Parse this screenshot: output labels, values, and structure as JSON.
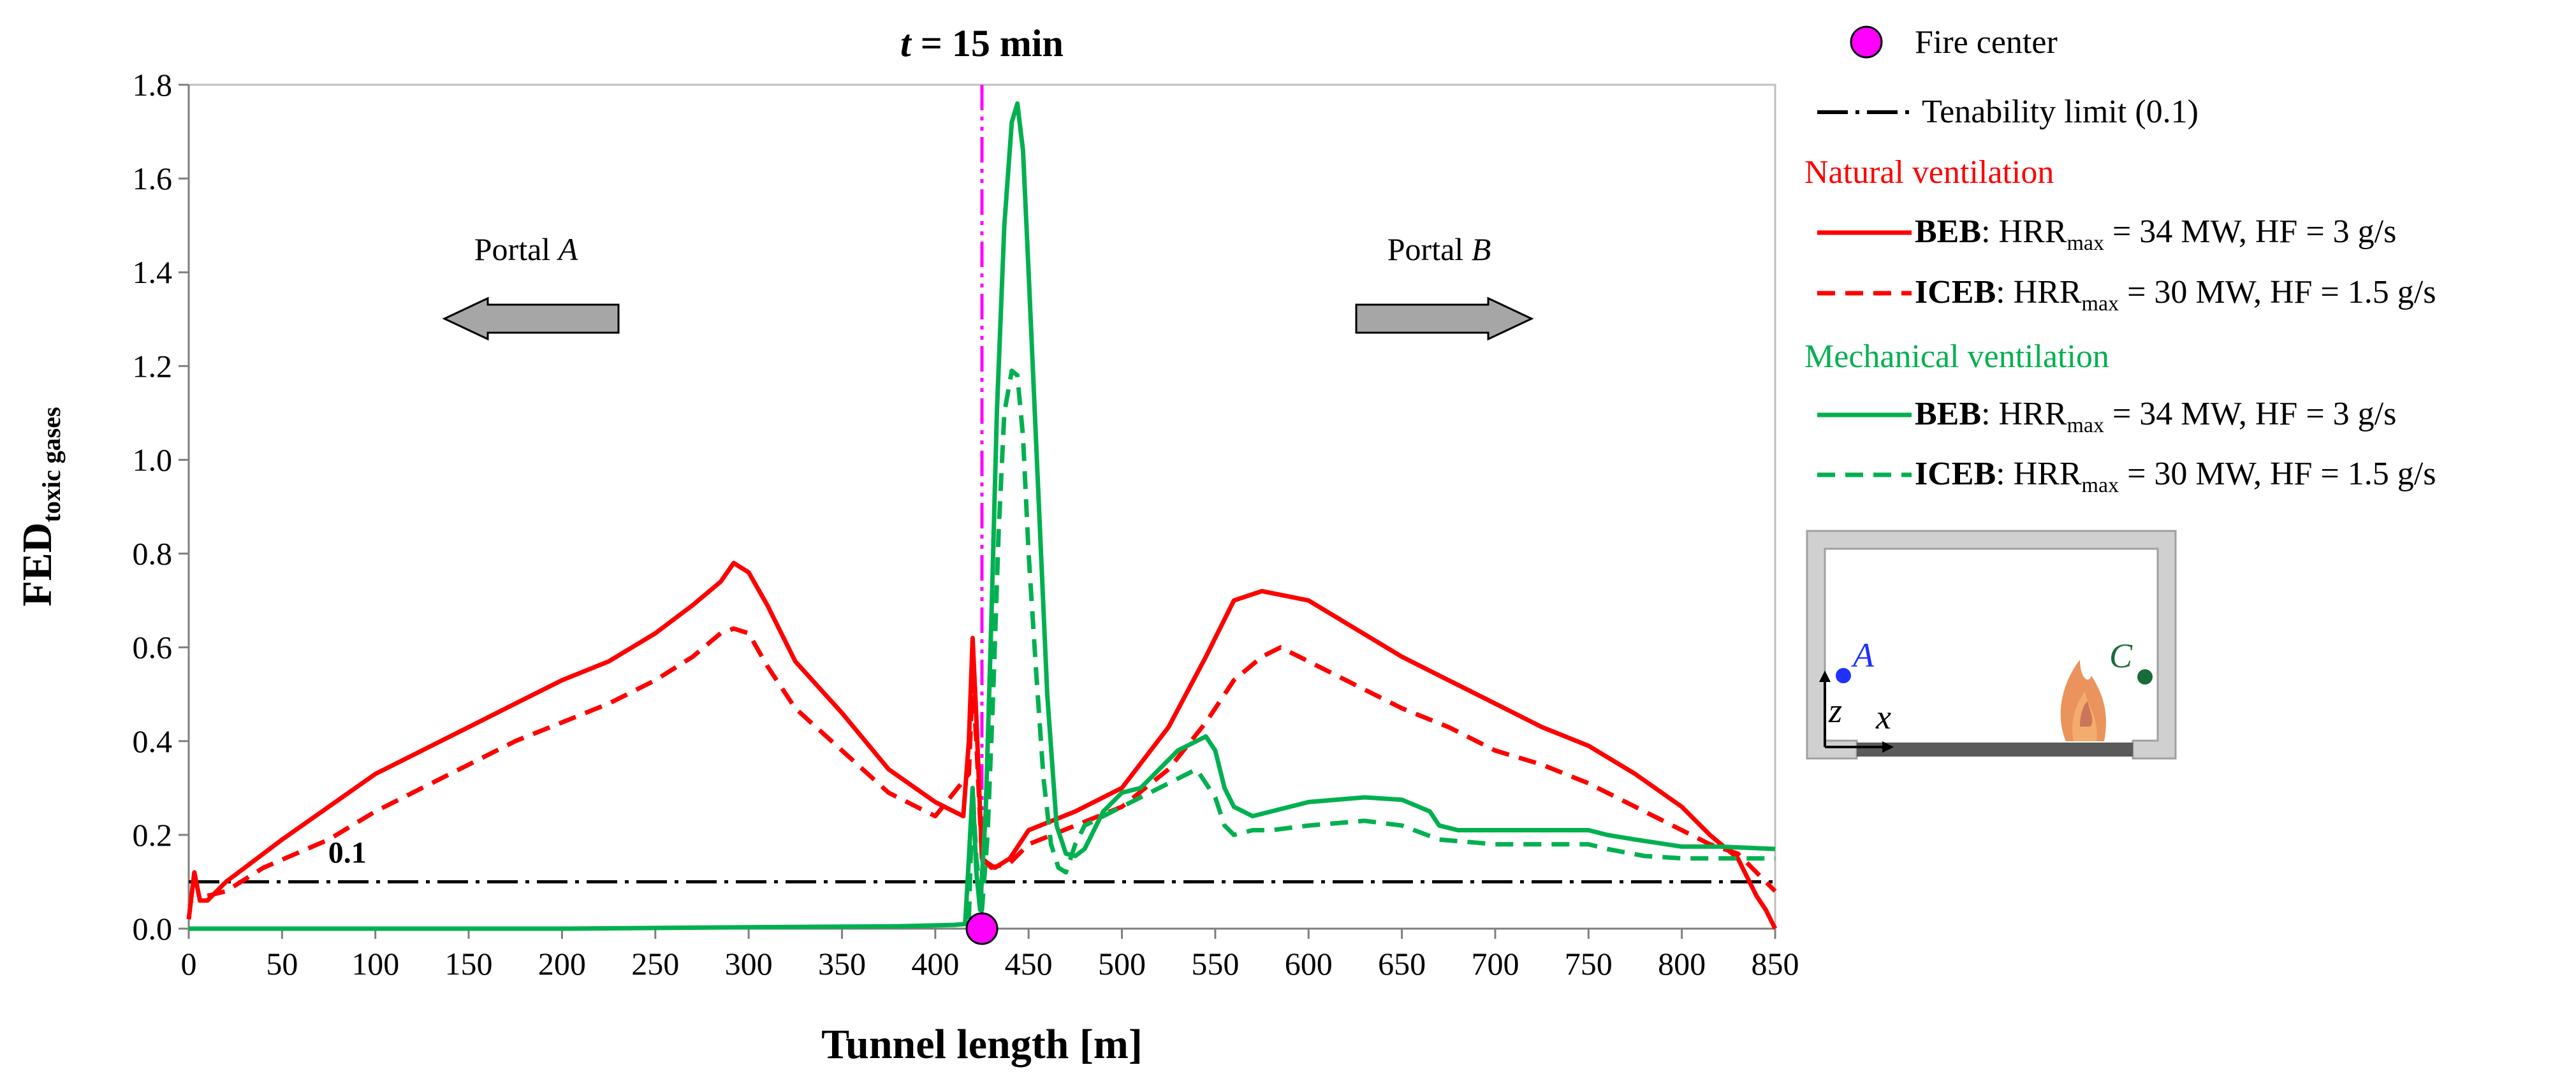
{
  "chart_data": {
    "type": "line",
    "title_prefix": "t",
    "title_rest": " = 15 min",
    "xlabel": "Tunnel length [m]",
    "ylabel_main": "FED",
    "ylabel_sub": "toxic gases",
    "xlim": [
      0,
      850
    ],
    "ylim": [
      0,
      1.8
    ],
    "xticks": [
      0,
      50,
      100,
      150,
      200,
      250,
      300,
      350,
      400,
      450,
      500,
      550,
      600,
      650,
      700,
      750,
      800,
      850
    ],
    "yticks": [
      "0.0",
      "0.2",
      "0.4",
      "0.6",
      "0.8",
      "1.0",
      "1.2",
      "1.4",
      "1.6",
      "1.8"
    ],
    "grid": false,
    "tenability_limit": 0.1,
    "tenability_label": "0.1",
    "fire_center_x": 425,
    "annotations": {
      "portal_a": {
        "word": "Portal ",
        "letter": "A"
      },
      "portal_b": {
        "word": "Portal ",
        "letter": "B"
      }
    },
    "colors": {
      "natural": "#ff0000",
      "mechanical": "#00b050",
      "fire": "#ff00ff",
      "limit": "#000000",
      "arrow_fill": "#a6a6a6"
    },
    "series": [
      {
        "group": "natural",
        "style": "solid",
        "x": [
          0,
          3,
          6,
          10,
          15,
          20,
          30,
          50,
          75,
          100,
          125,
          150,
          175,
          200,
          225,
          250,
          270,
          285,
          292,
          300,
          310,
          325,
          350,
          375,
          400,
          415,
          418,
          420,
          422,
          425,
          428,
          432,
          440,
          450,
          475,
          500,
          525,
          545,
          560,
          575,
          600,
          625,
          650,
          675,
          700,
          725,
          750,
          775,
          800,
          815,
          830,
          840,
          845,
          850
        ],
        "y": [
          0.02,
          0.12,
          0.06,
          0.06,
          0.08,
          0.1,
          0.13,
          0.19,
          0.26,
          0.33,
          0.38,
          0.43,
          0.48,
          0.53,
          0.57,
          0.63,
          0.69,
          0.74,
          0.78,
          0.76,
          0.69,
          0.57,
          0.46,
          0.34,
          0.27,
          0.24,
          0.4,
          0.62,
          0.45,
          0.15,
          0.14,
          0.13,
          0.15,
          0.21,
          0.25,
          0.3,
          0.43,
          0.58,
          0.7,
          0.72,
          0.7,
          0.64,
          0.58,
          0.53,
          0.48,
          0.43,
          0.39,
          0.33,
          0.26,
          0.2,
          0.15,
          0.07,
          0.04,
          0.0
        ]
      },
      {
        "group": "natural",
        "style": "dashed",
        "x": [
          10,
          20,
          40,
          75,
          100,
          125,
          150,
          175,
          200,
          225,
          250,
          270,
          285,
          292,
          300,
          310,
          325,
          350,
          375,
          400,
          418,
          420,
          422,
          425,
          430,
          440,
          450,
          475,
          500,
          525,
          545,
          560,
          575,
          585,
          600,
          625,
          650,
          675,
          700,
          725,
          750,
          775,
          800,
          815,
          830,
          840,
          850
        ],
        "y": [
          0.07,
          0.08,
          0.13,
          0.19,
          0.25,
          0.3,
          0.35,
          0.4,
          0.44,
          0.48,
          0.53,
          0.58,
          0.63,
          0.64,
          0.63,
          0.56,
          0.47,
          0.38,
          0.29,
          0.24,
          0.33,
          0.53,
          0.4,
          0.15,
          0.13,
          0.14,
          0.18,
          0.22,
          0.26,
          0.34,
          0.44,
          0.53,
          0.58,
          0.6,
          0.57,
          0.52,
          0.47,
          0.43,
          0.38,
          0.35,
          0.31,
          0.26,
          0.21,
          0.18,
          0.16,
          0.12,
          0.08
        ]
      },
      {
        "group": "mechanical",
        "style": "solid",
        "x": [
          0,
          100,
          200,
          300,
          380,
          410,
          416,
          418,
          420,
          422,
          424,
          427,
          430,
          433,
          437,
          441,
          444,
          447,
          450,
          455,
          460,
          465,
          470,
          475,
          480,
          490,
          500,
          510,
          520,
          530,
          540,
          545,
          550,
          555,
          560,
          570,
          580,
          600,
          630,
          650,
          665,
          670,
          680,
          700,
          750,
          760,
          775,
          800,
          820,
          850
        ],
        "y": [
          0.0,
          0.0,
          0.0,
          0.003,
          0.005,
          0.008,
          0.01,
          0.15,
          0.3,
          0.12,
          0.04,
          0.25,
          0.65,
          1.1,
          1.5,
          1.72,
          1.76,
          1.66,
          1.4,
          0.95,
          0.5,
          0.22,
          0.16,
          0.155,
          0.17,
          0.25,
          0.29,
          0.3,
          0.34,
          0.38,
          0.4,
          0.41,
          0.38,
          0.3,
          0.26,
          0.24,
          0.25,
          0.27,
          0.28,
          0.275,
          0.25,
          0.22,
          0.21,
          0.21,
          0.21,
          0.2,
          0.19,
          0.175,
          0.175,
          0.17
        ]
      },
      {
        "group": "mechanical",
        "style": "dashed",
        "x": [
          418,
          420,
          422,
          425,
          428,
          431,
          434,
          437,
          441,
          444,
          447,
          450,
          454,
          458,
          462,
          466,
          470,
          475,
          480,
          490,
          500,
          520,
          540,
          550,
          555,
          560,
          570,
          580,
          600,
          630,
          650,
          670,
          700,
          750,
          760,
          780,
          800,
          820,
          850
        ],
        "y": [
          0.02,
          0.3,
          0.15,
          0.04,
          0.2,
          0.5,
          0.85,
          1.1,
          1.19,
          1.18,
          1.05,
          0.8,
          0.55,
          0.32,
          0.18,
          0.13,
          0.12,
          0.18,
          0.22,
          0.24,
          0.26,
          0.3,
          0.34,
          0.28,
          0.22,
          0.2,
          0.21,
          0.21,
          0.22,
          0.23,
          0.22,
          0.19,
          0.18,
          0.18,
          0.17,
          0.155,
          0.15,
          0.15,
          0.15
        ]
      }
    ]
  },
  "legend": {
    "fire_center": "Fire center",
    "tenability_limit": "Tenability limit (0.1)",
    "natural_header": "Natural ventilation",
    "mechanical_header": "Mechanical ventilation",
    "entries": [
      {
        "group": "natural",
        "style": "solid",
        "bold": "BEB",
        "pre": ": HRR",
        "sub": "max",
        "post": " = 34 MW, HF = 3 g/s"
      },
      {
        "group": "natural",
        "style": "dashed",
        "bold": "ICEB",
        "pre": ": HRR",
        "sub": "max",
        "post": " = 30 MW, HF = 1.5 g/s"
      },
      {
        "group": "mechanical",
        "style": "solid",
        "bold": "BEB",
        "pre": ": HRR",
        "sub": "max",
        "post": " = 34 MW, HF = 3 g/s"
      },
      {
        "group": "mechanical",
        "style": "dashed",
        "bold": "ICEB",
        "pre": ": HRR",
        "sub": "max",
        "post": " = 30 MW, HF = 1.5 g/s"
      }
    ]
  },
  "inset": {
    "point_a": "A",
    "point_c": "C",
    "axis_z": "z",
    "axis_x": "x",
    "colors": {
      "frame": "#c8c8c8",
      "floor": "#5a5a5a",
      "point_a": "#2030ff",
      "point_c": "#1a6b3a",
      "flame": "#e8874a"
    }
  }
}
